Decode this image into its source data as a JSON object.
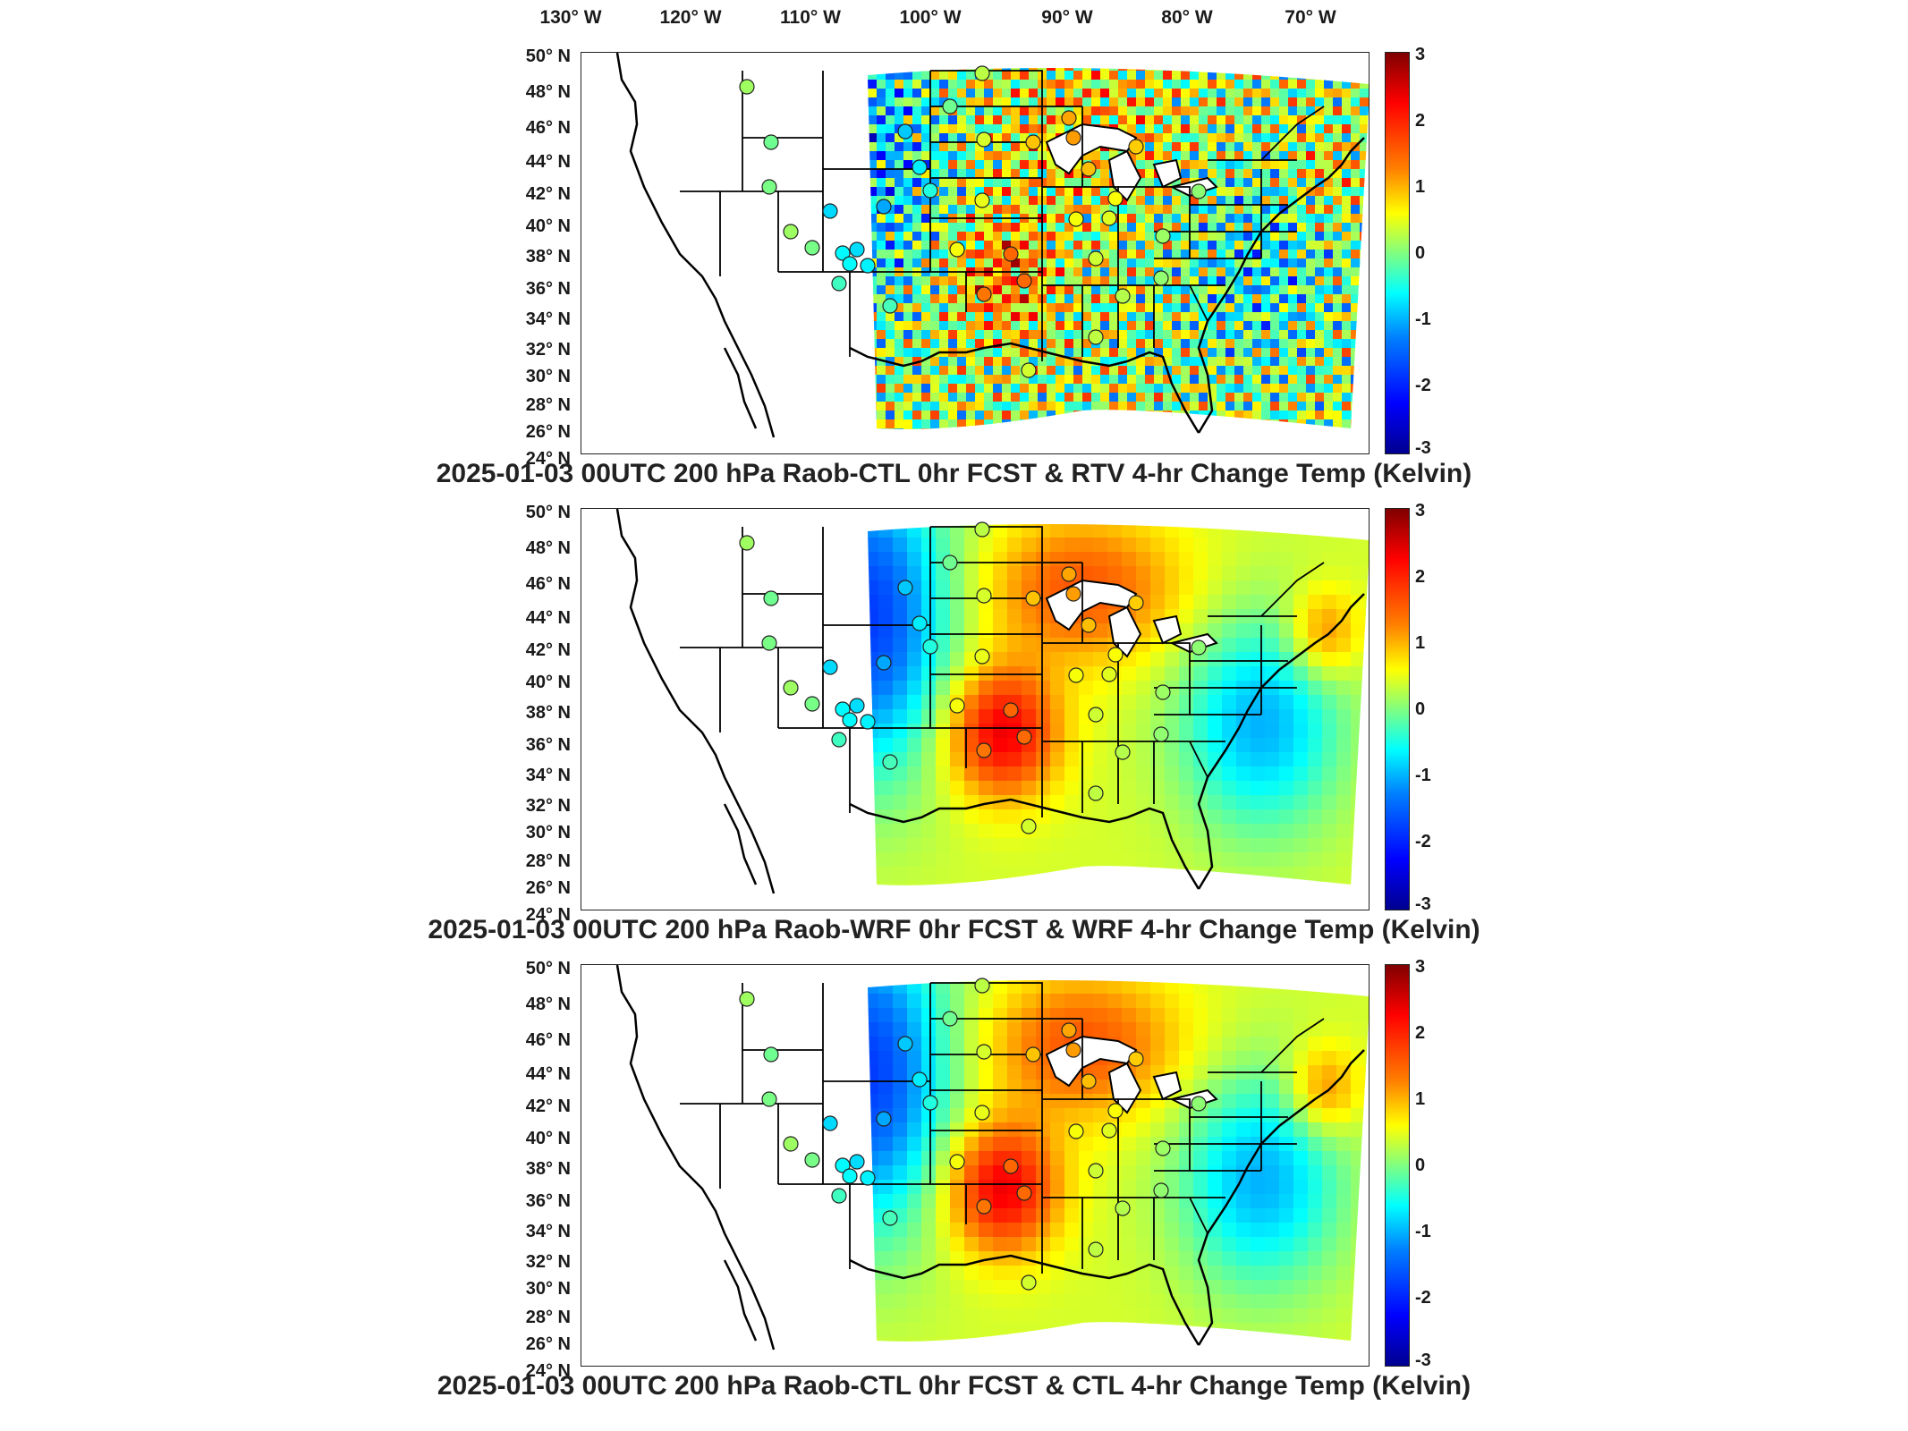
{
  "lon_labels": [
    "130° W",
    "120° W",
    "110° W",
    "100° W",
    "90° W",
    "80° W",
    "70° W"
  ],
  "lat_labels": [
    "50° N",
    "48° N",
    "46° N",
    "44° N",
    "42° N",
    "40° N",
    "38° N",
    "36° N",
    "34° N",
    "32° N",
    "30° N",
    "28° N",
    "26° N",
    "24° N"
  ],
  "colorbar": {
    "ticks": [
      "3",
      "2",
      "1",
      "0",
      "-1",
      "-2",
      "-3"
    ],
    "range": [
      -3,
      3
    ],
    "colormap": "jet"
  },
  "panels": [
    {
      "title": "2025-01-03 00UTC 200 hPa Raob-CTL 0hr FCST & RTV 4-hr Change Temp (Kelvin)",
      "style": "noisy"
    },
    {
      "title": "2025-01-03 00UTC 200 hPa Raob-WRF 0hr FCST & WRF 4-hr Change Temp (Kelvin)",
      "style": "smooth"
    },
    {
      "title": "2025-01-03 00UTC 200 hPa Raob-CTL 0hr FCST & CTL 4-hr Change Temp (Kelvin)",
      "style": "smooth"
    }
  ]
}
